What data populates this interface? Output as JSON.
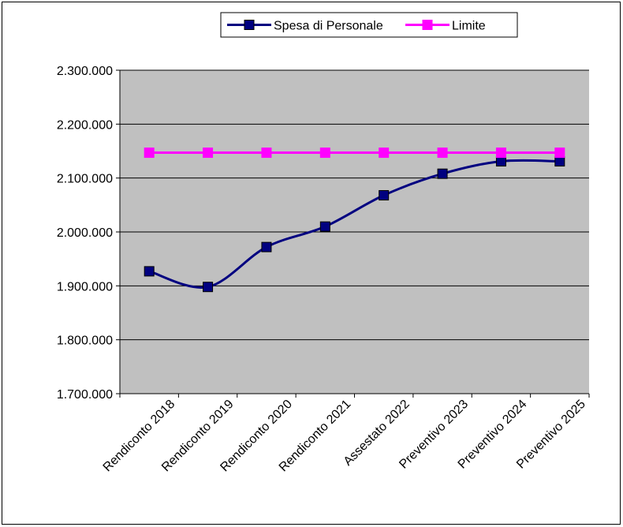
{
  "chart_data": {
    "type": "line",
    "title": "",
    "xlabel": "",
    "ylabel": "",
    "categories": [
      "Rendiconto 2018",
      "Rendiconto 2019",
      "Rendiconto 2020",
      "Rendiconto 2021",
      "Assestato 2022",
      "Preventivo 2023",
      "Preventivo 2024",
      "Preventivo 2025"
    ],
    "ylim": [
      1700000,
      2300000
    ],
    "yticks": [
      1700000,
      1800000,
      1900000,
      2000000,
      2100000,
      2200000,
      2300000
    ],
    "ytick_labels": [
      "1.700.000",
      "1.800.000",
      "1.900.000",
      "2.000.000",
      "2.100.000",
      "2.200.000",
      "2.300.000"
    ],
    "grid": true,
    "legend_position": "top",
    "plot_background": "#c0c0c0",
    "series": [
      {
        "name": "Spesa di Personale",
        "color": "#000080",
        "marker": "square",
        "smooth": true,
        "values": [
          1927000,
          1898000,
          1972000,
          2010000,
          2068000,
          2108000,
          2131000,
          2131000
        ]
      },
      {
        "name": "Limite",
        "color": "#ff00ff",
        "marker": "square",
        "smooth": false,
        "values": [
          2147000,
          2147000,
          2147000,
          2147000,
          2147000,
          2147000,
          2147000,
          2147000
        ]
      }
    ]
  }
}
